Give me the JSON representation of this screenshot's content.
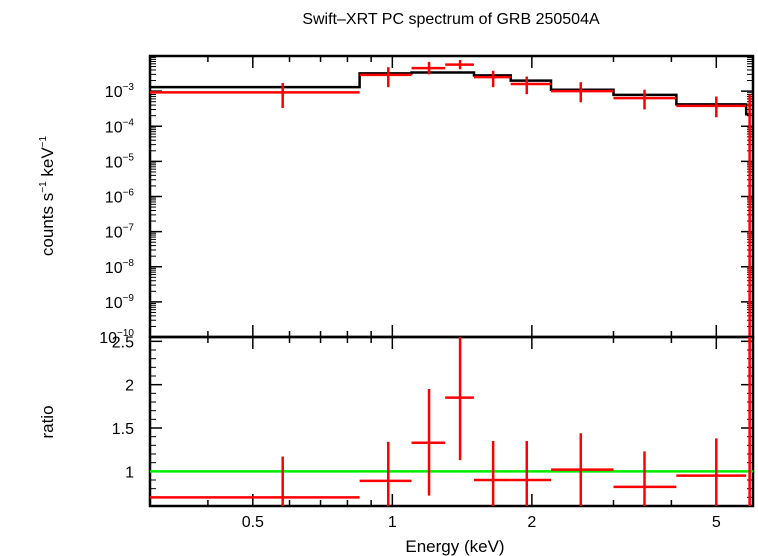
{
  "chart_data": [
    {
      "type": "scatter",
      "title": "Swift–XRT PC spectrum of GRB 250504A",
      "xlabel": "Energy (keV)",
      "ylabel_parts": [
        "counts s",
        "−1",
        " keV",
        "−1"
      ],
      "xscale": "log",
      "yscale": "log",
      "xlim": [
        0.3,
        6.0
      ],
      "ylim": [
        1e-10,
        0.01
      ],
      "y_ticks": [
        {
          "base": "10",
          "exp": "−3",
          "value": 0.001
        },
        {
          "base": "10",
          "exp": "−4",
          "value": 0.0001
        },
        {
          "base": "10",
          "exp": "−5",
          "value": 1e-05
        },
        {
          "base": "10",
          "exp": "−6",
          "value": 1e-06
        },
        {
          "base": "10",
          "exp": "−7",
          "value": 1e-07
        },
        {
          "base": "10",
          "exp": "−8",
          "value": 1e-08
        },
        {
          "base": "10",
          "exp": "−9",
          "value": 1e-09
        },
        {
          "base": "10",
          "exp": "−10",
          "value": 1e-10
        }
      ],
      "series": [
        {
          "type": "scatter",
          "color": "#ff0000",
          "points": [
            {
              "x": 0.58,
              "xlo": 0.3,
              "xhi": 0.85,
              "y": 0.00092,
              "ylo": 0.00033,
              "yhi": 0.0017
            },
            {
              "x": 0.98,
              "xlo": 0.85,
              "xhi": 1.1,
              "y": 0.0029,
              "ylo": 0.0013,
              "yhi": 0.0048
            },
            {
              "x": 1.2,
              "xlo": 1.1,
              "xhi": 1.3,
              "y": 0.0045,
              "ylo": 0.003,
              "yhi": 0.0068
            },
            {
              "x": 1.4,
              "xlo": 1.3,
              "xhi": 1.5,
              "y": 0.0057,
              "ylo": 0.0042,
              "yhi": 0.0077
            },
            {
              "x": 1.65,
              "xlo": 1.5,
              "xhi": 1.8,
              "y": 0.0025,
              "ylo": 0.0013,
              "yhi": 0.0038
            },
            {
              "x": 1.95,
              "xlo": 1.8,
              "xhi": 2.2,
              "y": 0.0016,
              "ylo": 0.00082,
              "yhi": 0.0026
            },
            {
              "x": 2.55,
              "xlo": 2.2,
              "xhi": 3.0,
              "y": 0.001,
              "ylo": 0.00048,
              "yhi": 0.0018
            },
            {
              "x": 3.5,
              "xlo": 3.0,
              "xhi": 4.1,
              "y": 0.00063,
              "ylo": 0.0003,
              "yhi": 0.0011
            },
            {
              "x": 5.0,
              "xlo": 4.1,
              "xhi": 5.8,
              "y": 0.00038,
              "ylo": 0.00018,
              "yhi": 0.0007
            },
            {
              "x": 5.9,
              "xlo": 5.85,
              "xhi": 5.95,
              "y": 0.0004,
              "ylo": 1e-10,
              "yhi": 0.0008
            }
          ]
        },
        {
          "type": "step",
          "color": "#000000",
          "steps": [
            {
              "xlo": 0.3,
              "xhi": 0.85,
              "y": 0.0013
            },
            {
              "xlo": 0.85,
              "xhi": 1.1,
              "y": 0.0032
            },
            {
              "xlo": 1.1,
              "xhi": 1.5,
              "y": 0.0034
            },
            {
              "xlo": 1.5,
              "xhi": 1.8,
              "y": 0.0028
            },
            {
              "xlo": 1.8,
              "xhi": 2.2,
              "y": 0.002
            },
            {
              "xlo": 2.2,
              "xhi": 3.0,
              "y": 0.0011
            },
            {
              "xlo": 3.0,
              "xhi": 4.1,
              "y": 0.00078
            },
            {
              "xlo": 4.1,
              "xhi": 5.8,
              "y": 0.00042
            },
            {
              "xlo": 5.8,
              "xhi": 5.95,
              "y": 0.00022
            }
          ]
        }
      ]
    },
    {
      "type": "scatter",
      "xlabel": "Energy (keV)",
      "ylabel": "ratio",
      "xscale": "log",
      "xlim": [
        0.3,
        6.0
      ],
      "ylim": [
        0.6,
        2.55
      ],
      "x_ticks": [
        {
          "label": "0.5",
          "value": 0.5
        },
        {
          "label": "1",
          "value": 1
        },
        {
          "label": "2",
          "value": 2
        },
        {
          "label": "5",
          "value": 5
        }
      ],
      "y_ticks": [
        {
          "label": "1",
          "value": 1
        },
        {
          "label": "1.5",
          "value": 1.5
        },
        {
          "label": "2",
          "value": 2
        },
        {
          "label": "2.5",
          "value": 2.5
        }
      ],
      "reference_line": {
        "y": 1,
        "color": "#00ee00"
      },
      "series": [
        {
          "type": "scatter",
          "color": "#ff0000",
          "points": [
            {
              "x": 0.58,
              "xlo": 0.3,
              "xhi": 0.85,
              "y": 0.7,
              "ylo": 0.6,
              "yhi": 1.17
            },
            {
              "x": 0.98,
              "xlo": 0.85,
              "xhi": 1.1,
              "y": 0.89,
              "ylo": 0.6,
              "yhi": 1.34
            },
            {
              "x": 1.2,
              "xlo": 1.1,
              "xhi": 1.3,
              "y": 1.33,
              "ylo": 0.72,
              "yhi": 1.95
            },
            {
              "x": 1.4,
              "xlo": 1.3,
              "xhi": 1.5,
              "y": 1.85,
              "ylo": 1.13,
              "yhi": 2.57
            },
            {
              "x": 1.65,
              "xlo": 1.5,
              "xhi": 1.8,
              "y": 0.9,
              "ylo": 0.6,
              "yhi": 1.35
            },
            {
              "x": 1.95,
              "xlo": 1.8,
              "xhi": 2.2,
              "y": 0.9,
              "ylo": 0.6,
              "yhi": 1.35
            },
            {
              "x": 2.55,
              "xlo": 2.2,
              "xhi": 3.0,
              "y": 1.02,
              "ylo": 0.6,
              "yhi": 1.44
            },
            {
              "x": 3.5,
              "xlo": 3.0,
              "xhi": 4.1,
              "y": 0.82,
              "ylo": 0.6,
              "yhi": 1.23
            },
            {
              "x": 5.0,
              "xlo": 4.1,
              "xhi": 5.8,
              "y": 0.95,
              "ylo": 0.6,
              "yhi": 1.38
            },
            {
              "x": 5.9,
              "xlo": 5.85,
              "xhi": 5.95,
              "y": 2.5,
              "ylo": 0.6,
              "yhi": 2.55
            }
          ]
        }
      ]
    }
  ]
}
